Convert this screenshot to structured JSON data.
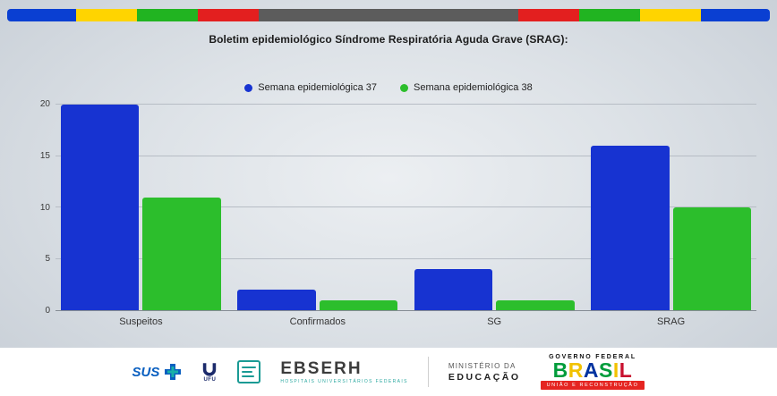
{
  "top_stripe": {
    "segments": [
      {
        "name": "blue",
        "color": "#0a3fd2",
        "weight": 9
      },
      {
        "name": "yellow",
        "color": "#ffd400",
        "weight": 8
      },
      {
        "name": "green",
        "color": "#21b421",
        "weight": 8
      },
      {
        "name": "red",
        "color": "#e31f1f",
        "weight": 8
      },
      {
        "name": "gray",
        "color": "#5c5c5c",
        "weight": 34
      },
      {
        "name": "red",
        "color": "#e31f1f",
        "weight": 8
      },
      {
        "name": "green",
        "color": "#21b421",
        "weight": 8
      },
      {
        "name": "yellow",
        "color": "#ffd400",
        "weight": 8
      },
      {
        "name": "blue",
        "color": "#0a3fd2",
        "weight": 9
      }
    ]
  },
  "chart_data": {
    "type": "bar",
    "title": "Boletim epidemiológico Síndrome Respiratória Aguda Grave (SRAG):",
    "categories": [
      "Suspeitos",
      "Confirmados",
      "SG",
      "SRAG"
    ],
    "series": [
      {
        "name": "Semana epidemiológica 37",
        "color": "#1733d1",
        "values": [
          20,
          2,
          4,
          16
        ]
      },
      {
        "name": "Semana epidemiológica 38",
        "color": "#2cbe2c",
        "values": [
          11,
          1,
          1,
          10
        ]
      }
    ],
    "xlabel": "",
    "ylabel": "",
    "ylim": [
      0,
      20
    ],
    "yticks": [
      0,
      5,
      10,
      15,
      20
    ],
    "grid": true,
    "legend_position": "top"
  },
  "footer": {
    "sus": "SUS",
    "ufu": "UFU",
    "ebserh": "EBSERH",
    "ebserh_tagline": "HOSPITAIS UNIVERSITÁRIOS FEDERAIS",
    "ministerio_line1": "MINISTÉRIO DA",
    "ministerio_line2": "EDUCAÇÃO",
    "governo": "GOVERNO FEDERAL",
    "brasil_letters": [
      {
        "ch": "B",
        "color": "#009C3B"
      },
      {
        "ch": "R",
        "color": "#F2C200"
      },
      {
        "ch": "A",
        "color": "#0033A0"
      },
      {
        "ch": "S",
        "color": "#009C3B"
      },
      {
        "ch": "I",
        "color": "#F2C200"
      },
      {
        "ch": "L",
        "color": "#C8102E"
      }
    ],
    "uniao": "UNIÃO E RECONSTRUÇÃO"
  }
}
